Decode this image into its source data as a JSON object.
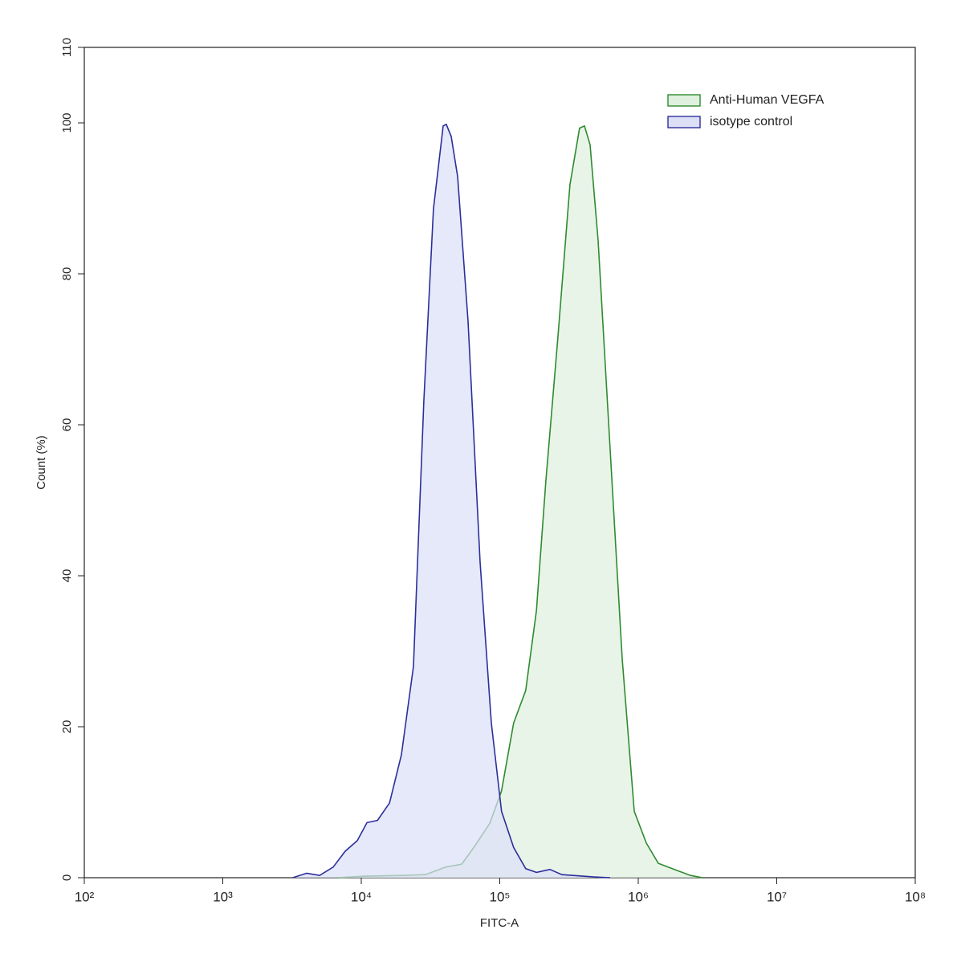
{
  "chart_data": {
    "type": "area",
    "xlabel": "FITC-A",
    "ylabel": "Count  (%)",
    "xscale": "log",
    "xlim": [
      100,
      100000000
    ],
    "ylim": [
      0,
      110
    ],
    "xticks": [
      {
        "value": 100,
        "label": "10²"
      },
      {
        "value": 1000,
        "label": "10³"
      },
      {
        "value": 10000,
        "label": "10⁴"
      },
      {
        "value": 100000,
        "label": "10⁵"
      },
      {
        "value": 1000000,
        "label": "10⁶"
      },
      {
        "value": 10000000,
        "label": "10⁷"
      },
      {
        "value": 100000000,
        "label": "10⁸"
      }
    ],
    "yticks": [
      0,
      20,
      40,
      60,
      80,
      100,
      110
    ],
    "legend": "upper right",
    "series": [
      {
        "name": "Anti-Human VEGFA",
        "color": "#2e8b2e",
        "fill": "#dff0df",
        "x": [
          6700,
          10700,
          19500,
          29100,
          40600,
          53100,
          64900,
          84700,
          103000,
          126000,
          154000,
          184000,
          215000,
          263000,
          321000,
          377000,
          409000,
          449000,
          513000,
          627000,
          766000,
          935000,
          1143000,
          1396000,
          1824000,
          2383000,
          2910000
        ],
        "values": [
          0,
          0.2,
          0.3,
          0.4,
          1.4,
          1.8,
          4,
          7.2,
          11.5,
          20.5,
          24.8,
          35.4,
          52.4,
          71.6,
          91.8,
          99.3,
          99.6,
          97.1,
          84.4,
          56.7,
          29,
          8.8,
          4.6,
          1.9,
          1.1,
          0.3,
          0
        ]
      },
      {
        "name": "isotype control",
        "color": "#2b2f9a",
        "fill": "#dcdff6",
        "x": [
          3200,
          4040,
          5000,
          6270,
          7650,
          9350,
          11000,
          13100,
          16000,
          19500,
          23800,
          28300,
          33200,
          39000,
          41100,
          44600,
          49600,
          59000,
          72100,
          86900,
          103000,
          126000,
          154000,
          184000,
          230000,
          281000,
          480000,
          627000
        ],
        "values": [
          0,
          0.6,
          0.3,
          1.4,
          3.5,
          4.9,
          7.3,
          7.6,
          9.9,
          16.3,
          28,
          63.1,
          88.6,
          99.6,
          99.8,
          98.2,
          92.9,
          73.7,
          41.8,
          20.5,
          8.8,
          4,
          1.2,
          0.7,
          1.1,
          0.4,
          0.1,
          0
        ]
      }
    ]
  }
}
